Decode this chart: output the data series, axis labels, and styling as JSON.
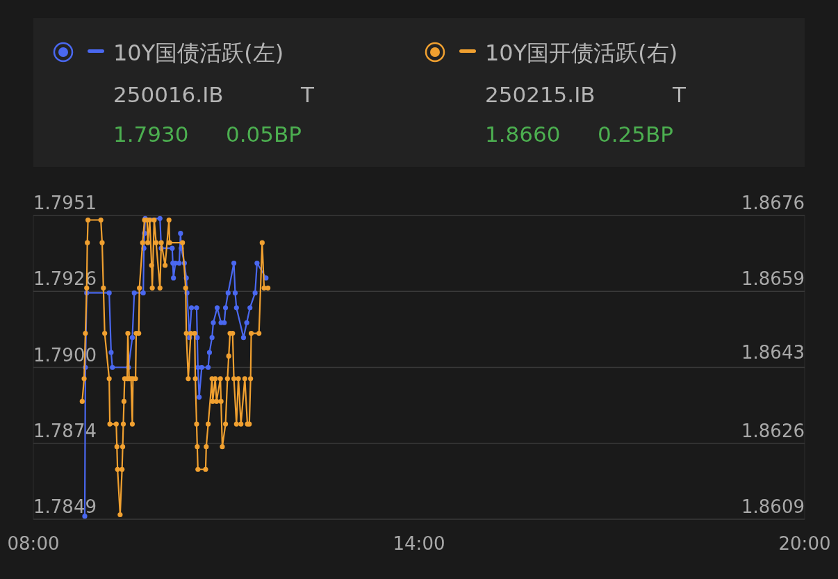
{
  "chart_data": {
    "type": "line",
    "marker": "circle",
    "grid": "y",
    "legend": "top",
    "xlim": [
      8,
      20
    ],
    "xticks": [
      {
        "value": 8,
        "label": "08:00"
      },
      {
        "value": 14,
        "label": "14:00"
      },
      {
        "value": 20,
        "label": "20:00"
      }
    ],
    "ylim": [
      1.7849,
      1.7951
    ],
    "yticks": [
      1.7849,
      {
        "value": 1.78745,
        "label": "1.7874"
      },
      {
        "value": 1.79,
        "label": "1.7900"
      },
      {
        "value": 1.79255,
        "label": "1.7926"
      },
      1.7951
    ],
    "y2lim": [
      1.8609,
      1.8676
    ],
    "y2ticks": [
      1.8609,
      {
        "value": 1.862575,
        "label": "1.8626"
      },
      1.8643,
      {
        "value": 1.865925,
        "label": "1.8659"
      },
      1.8676
    ],
    "annotations": [
      "250016.IB",
      "T",
      "1.7930",
      "0.05BP",
      "250215.IB",
      "T",
      "1.8660",
      "0.25BP"
    ],
    "series": [
      {
        "name": "10Y国债活跃(左)",
        "color": "#4a68f0",
        "x": [
          8.8,
          8.81,
          8.83,
          9.18,
          9.21,
          9.23,
          9.48,
          9.54,
          9.57,
          9.71,
          9.72,
          9.73,
          9.74,
          9.97,
          9.99,
          10.16,
          10.17,
          10.18,
          10.21,
          10.27,
          10.29,
          10.3,
          10.35,
          10.38,
          10.39,
          10.43,
          10.46,
          10.54,
          10.55,
          10.56,
          10.58,
          10.62,
          10.72,
          10.74,
          10.78,
          10.8,
          10.86,
          10.92,
          10.97,
          10.99,
          11.03,
          11.12,
          11.14,
          11.16,
          11.27,
          11.32,
          11.37,
          11.45,
          11.48,
          11.62
        ],
        "values": [
          1.785,
          1.79,
          1.7925,
          1.7925,
          1.7905,
          1.79,
          1.79,
          1.791,
          1.7925,
          1.7925,
          1.794,
          1.7945,
          1.795,
          1.795,
          1.794,
          1.794,
          1.7935,
          1.793,
          1.7935,
          1.7935,
          1.7945,
          1.794,
          1.7935,
          1.793,
          1.7925,
          1.791,
          1.792,
          1.792,
          1.791,
          1.79,
          1.789,
          1.79,
          1.79,
          1.7905,
          1.791,
          1.7915,
          1.792,
          1.7915,
          1.7915,
          1.792,
          1.7925,
          1.7935,
          1.7925,
          1.792,
          1.791,
          1.7915,
          1.792,
          1.7925,
          1.7935,
          1.793
        ]
      },
      {
        "name": "10Y国开债活跃(右)",
        "color": "#f0a030",
        "axis": "y2",
        "x": [
          8.76,
          8.79,
          8.81,
          8.83,
          8.84,
          8.85,
          9.05,
          9.07,
          9.09,
          9.11,
          9.18,
          9.19,
          9.29,
          9.3,
          9.31,
          9.35,
          9.38,
          9.39,
          9.4,
          9.41,
          9.42,
          9.46,
          9.47,
          9.49,
          9.52,
          9.54,
          9.55,
          9.59,
          9.6,
          9.64,
          9.65,
          9.7,
          9.73,
          9.77,
          9.78,
          9.81,
          9.84,
          9.85,
          9.88,
          9.91,
          9.97,
          9.99,
          10.05,
          10.11,
          10.12,
          10.32,
          10.37,
          10.38,
          10.41,
          10.45,
          10.51,
          10.52,
          10.54,
          10.55,
          10.56,
          10.68,
          10.69,
          10.72,
          10.78,
          10.79,
          10.83,
          10.85,
          10.91,
          10.92,
          10.94,
          10.99,
          11.02,
          11.04,
          11.06,
          11.1,
          11.12,
          11.16,
          11.19,
          11.23,
          11.29,
          11.33,
          11.36,
          11.38,
          11.39,
          11.51,
          11.56,
          11.59,
          11.65
        ],
        "values": [
          1.8635,
          1.864,
          1.865,
          1.866,
          1.867,
          1.8675,
          1.8675,
          1.867,
          1.866,
          1.865,
          1.864,
          1.863,
          1.863,
          1.8625,
          1.862,
          1.861,
          1.862,
          1.8625,
          1.863,
          1.8635,
          1.864,
          1.864,
          1.865,
          1.864,
          1.864,
          1.863,
          1.864,
          1.864,
          1.865,
          1.865,
          1.866,
          1.867,
          1.8675,
          1.8675,
          1.867,
          1.8675,
          1.8665,
          1.866,
          1.8675,
          1.867,
          1.866,
          1.867,
          1.8665,
          1.8675,
          1.867,
          1.867,
          1.866,
          1.865,
          1.864,
          1.865,
          1.865,
          1.864,
          1.863,
          1.8625,
          1.862,
          1.862,
          1.8625,
          1.863,
          1.864,
          1.8635,
          1.864,
          1.8635,
          1.864,
          1.8635,
          1.8625,
          1.863,
          1.864,
          1.8645,
          1.865,
          1.865,
          1.864,
          1.863,
          1.864,
          1.863,
          1.864,
          1.863,
          1.863,
          1.864,
          1.865,
          1.865,
          1.867,
          1.866,
          1.866
        ]
      }
    ]
  }
}
